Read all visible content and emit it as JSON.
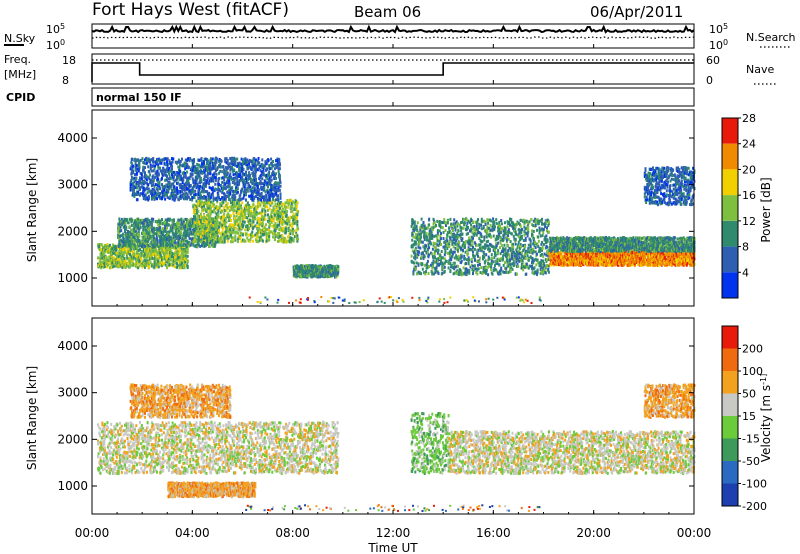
{
  "header": {
    "title": "Fort Hays West (fitACF)",
    "beam": "Beam 06",
    "date": "06/Apr/2011"
  },
  "noise_panel": {
    "left_label": "N.Sky",
    "left_ticks": [
      "10^5",
      "10^0"
    ],
    "right_ticks": [
      "10^5",
      "10^0"
    ],
    "right_label": "N.Search"
  },
  "freq_panel": {
    "left_label_lines": [
      "Freq.",
      "[MHz]"
    ],
    "left_ticks": [
      "18",
      "8"
    ],
    "right_ticks": [
      "60",
      "0"
    ],
    "right_label": "Nave"
  },
  "cpid": {
    "label": "CPID",
    "value": "normal 150 IF"
  },
  "chart_data": [
    {
      "type": "heatmap",
      "name": "power",
      "ylabel": "Slant Range [km]",
      "ylim": [
        400,
        4600
      ],
      "yticks": [
        "1000",
        "2000",
        "3000",
        "4000"
      ],
      "colorbar": {
        "label": "Power [dB]",
        "ticks": [
          "4",
          "8",
          "12",
          "16",
          "20",
          "24",
          "28"
        ],
        "colors": [
          "#0033ee",
          "#2e5fb0",
          "#2f8a6e",
          "#7fbf3f",
          "#f2d000",
          "#f08a00",
          "#e81a0a"
        ]
      },
      "bands": [
        {
          "t0": 0.2,
          "t1": 3.8,
          "r0": 1250,
          "r1": 1750,
          "level": 3
        },
        {
          "t0": 1.0,
          "t1": 5.0,
          "r0": 1700,
          "r1": 2300,
          "level": 2
        },
        {
          "t0": 4.0,
          "t1": 8.2,
          "r0": 1800,
          "r1": 2700,
          "level": 3
        },
        {
          "t0": 8.0,
          "t1": 9.8,
          "r0": 1050,
          "r1": 1300,
          "level": 2
        },
        {
          "t0": 1.5,
          "t1": 7.5,
          "r0": 2700,
          "r1": 3600,
          "level": 1
        },
        {
          "t0": 12.7,
          "t1": 18.2,
          "r0": 1100,
          "r1": 2300,
          "level": 2
        },
        {
          "t0": 18.2,
          "t1": 24.0,
          "r0": 1300,
          "r1": 1600,
          "level": 5
        },
        {
          "t0": 18.2,
          "t1": 24.0,
          "r0": 1600,
          "r1": 1900,
          "level": 2
        },
        {
          "t0": 22.0,
          "t1": 24.0,
          "r0": 2600,
          "r1": 3400,
          "level": 1
        }
      ]
    },
    {
      "type": "heatmap",
      "name": "velocity",
      "ylabel": "Slant Range [km]",
      "ylim": [
        400,
        4600
      ],
      "yticks": [
        "1000",
        "2000",
        "3000",
        "4000"
      ],
      "colorbar": {
        "label": "Velocity [m s^-1]",
        "ticks": [
          "200",
          "100",
          "50",
          "15",
          "-15",
          "-50",
          "-100",
          "-200"
        ],
        "colors": [
          "#1e3fb0",
          "#2a6ac0",
          "#3d9a5a",
          "#6ccb3b",
          "#c8c8c4",
          "#f2a21e",
          "#f06a10",
          "#e81a0a"
        ]
      },
      "bands": [
        {
          "t0": 0.2,
          "t1": 9.8,
          "r0": 1300,
          "r1": 2400,
          "level": 4
        },
        {
          "t0": 1.5,
          "t1": 5.5,
          "r0": 2500,
          "r1": 3200,
          "level": 5
        },
        {
          "t0": 3.0,
          "t1": 6.5,
          "r0": 800,
          "r1": 1100,
          "level": 5
        },
        {
          "t0": 12.7,
          "t1": 14.2,
          "r0": 1300,
          "r1": 2600,
          "level": 3
        },
        {
          "t0": 14.2,
          "t1": 24.0,
          "r0": 1300,
          "r1": 2200,
          "level": 4
        },
        {
          "t0": 22.0,
          "t1": 24.0,
          "r0": 2500,
          "r1": 3200,
          "level": 5
        }
      ]
    }
  ],
  "time_axis": {
    "xlabel": "Time UT",
    "xlim": [
      0,
      24
    ],
    "ticks": [
      "00:00",
      "04:00",
      "08:00",
      "12:00",
      "16:00",
      "20:00",
      "00:00"
    ]
  },
  "style": {
    "frame_color": "#000000",
    "background": "#ffffff"
  }
}
